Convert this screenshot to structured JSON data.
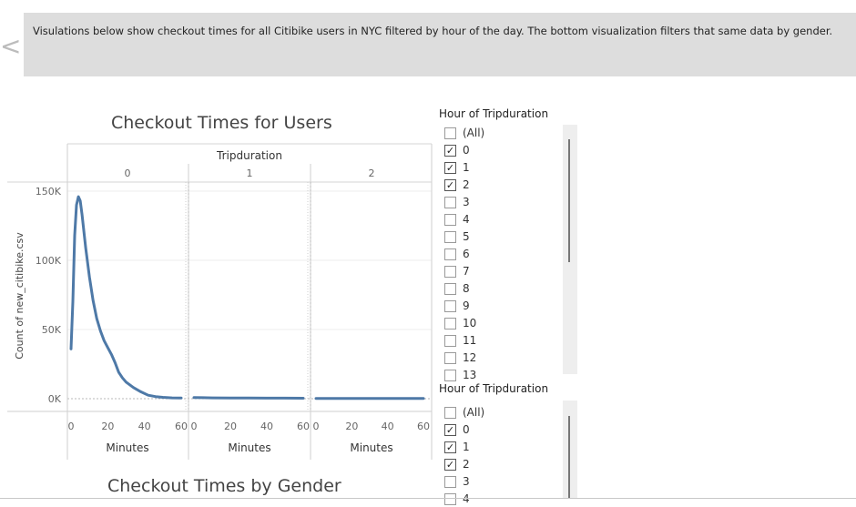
{
  "nav": {
    "back_icon": "chevron-left-icon",
    "back_glyph": "<"
  },
  "header": {
    "description": "Visulations below show checkout times for all Citibike users in NYC filtered by hour of the day. The bottom visualization filters that same data by gender."
  },
  "charts": {
    "users_title": "Checkout Times for Users",
    "gender_title": "Checkout Times by Gender"
  },
  "chart_data": {
    "type": "line",
    "title": "Checkout Times for Users",
    "column_header": "Tripduration",
    "panels": [
      "0",
      "1",
      "2"
    ],
    "xlabel": "Minutes",
    "ylabel": "Count of new_citibike.csv",
    "x_ticks": [
      "0",
      "20",
      "40",
      "60"
    ],
    "y_ticks": [
      "0K",
      "50K",
      "100K",
      "150K"
    ],
    "xlim": [
      0,
      62
    ],
    "ylim": [
      0,
      150000
    ],
    "color": "#4e79a7",
    "series": [
      {
        "panel": "0",
        "x": [
          0,
          1,
          2,
          3,
          4,
          5,
          6,
          7,
          8,
          10,
          12,
          14,
          16,
          18,
          20,
          22,
          24,
          26,
          28,
          30,
          34,
          38,
          42,
          46,
          50,
          55,
          60
        ],
        "y": [
          36000,
          70000,
          118000,
          140000,
          146000,
          143000,
          133000,
          121000,
          109000,
          88000,
          71000,
          58000,
          49000,
          42000,
          37000,
          32000,
          26000,
          19000,
          15000,
          12000,
          8000,
          5000,
          2500,
          1500,
          1000,
          600,
          500
        ]
      },
      {
        "panel": "1",
        "x": [
          0,
          5,
          10,
          20,
          30,
          40,
          50,
          60
        ],
        "y": [
          800,
          700,
          600,
          500,
          450,
          400,
          380,
          350
        ]
      },
      {
        "panel": "2",
        "x": [
          0,
          10,
          20,
          30,
          40,
          50,
          60
        ],
        "y": [
          200,
          200,
          200,
          200,
          200,
          200,
          200
        ]
      }
    ]
  },
  "filters": [
    {
      "title": "Hour of Tripduration",
      "items": [
        {
          "label": "(All)",
          "checked": false
        },
        {
          "label": "0",
          "checked": true
        },
        {
          "label": "1",
          "checked": true
        },
        {
          "label": "2",
          "checked": true
        },
        {
          "label": "3",
          "checked": false
        },
        {
          "label": "4",
          "checked": false
        },
        {
          "label": "5",
          "checked": false
        },
        {
          "label": "6",
          "checked": false
        },
        {
          "label": "7",
          "checked": false
        },
        {
          "label": "8",
          "checked": false
        },
        {
          "label": "9",
          "checked": false
        },
        {
          "label": "10",
          "checked": false
        },
        {
          "label": "11",
          "checked": false
        },
        {
          "label": "12",
          "checked": false
        },
        {
          "label": "13",
          "checked": false
        }
      ]
    },
    {
      "title": "Hour of Tripduration",
      "items": [
        {
          "label": "(All)",
          "checked": false
        },
        {
          "label": "0",
          "checked": true
        },
        {
          "label": "1",
          "checked": true
        },
        {
          "label": "2",
          "checked": true
        },
        {
          "label": "3",
          "checked": false
        },
        {
          "label": "4",
          "checked": false
        }
      ]
    }
  ]
}
